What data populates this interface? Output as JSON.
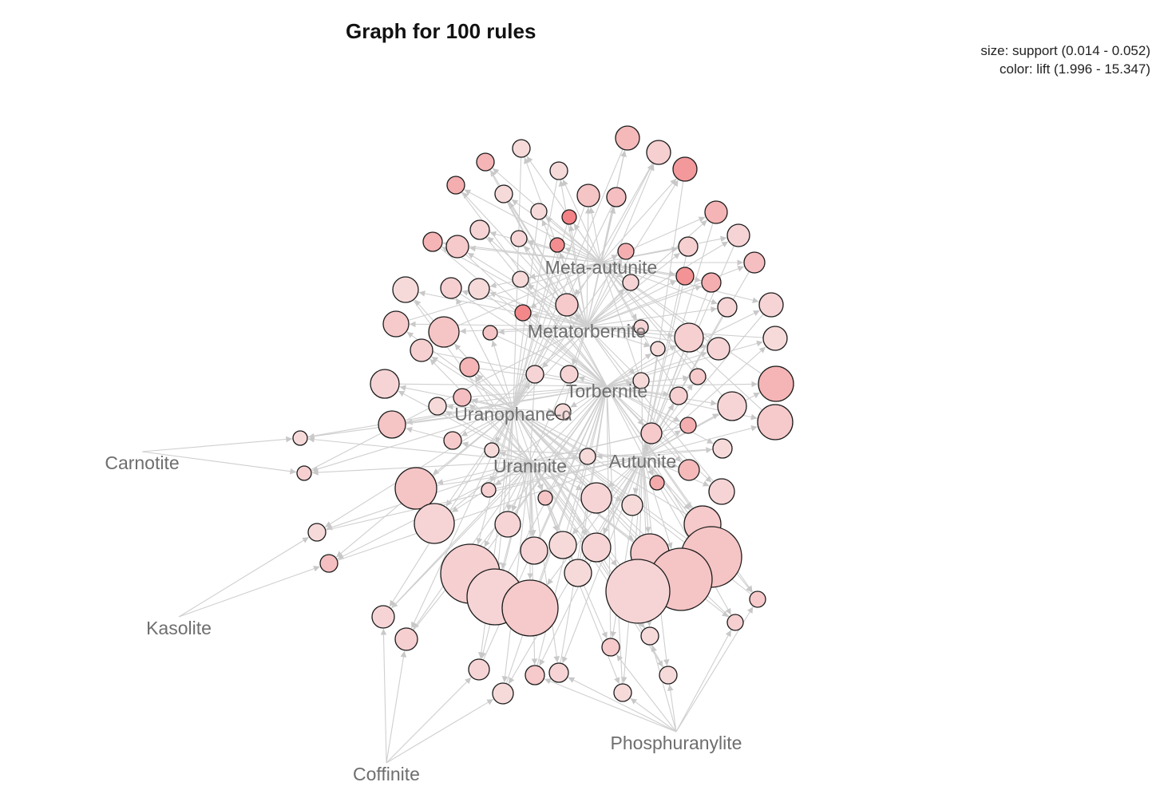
{
  "header": {
    "title": "Graph for 100 rules",
    "size_legend": "size: support (0.014 - 0.052)",
    "color_legend": "color: lift (1.996 - 15.347)"
  },
  "colors": {
    "edge": "#cfcfcf",
    "node_stroke": "#1a1a1a",
    "lift_low": "#f7eaea",
    "lift_high": "#f27d80",
    "label": "#6e6e6e"
  },
  "items": [
    {
      "id": "meta-autunite",
      "label": "Meta-autunite"
    },
    {
      "id": "metatorbernite",
      "label": "Metatorbernite"
    },
    {
      "id": "torbernite",
      "label": "Torbernite"
    },
    {
      "id": "uranophane",
      "label": "Uranophane-α"
    },
    {
      "id": "uraninite",
      "label": "Uraninite"
    },
    {
      "id": "autunite",
      "label": "Autunite"
    },
    {
      "id": "carnotite",
      "label": "Carnotite"
    },
    {
      "id": "kasolite",
      "label": "Kasolite"
    },
    {
      "id": "coffinite",
      "label": "Coffinite"
    },
    {
      "id": "phosphuranylite",
      "label": "Phosphuranylite"
    }
  ]
}
